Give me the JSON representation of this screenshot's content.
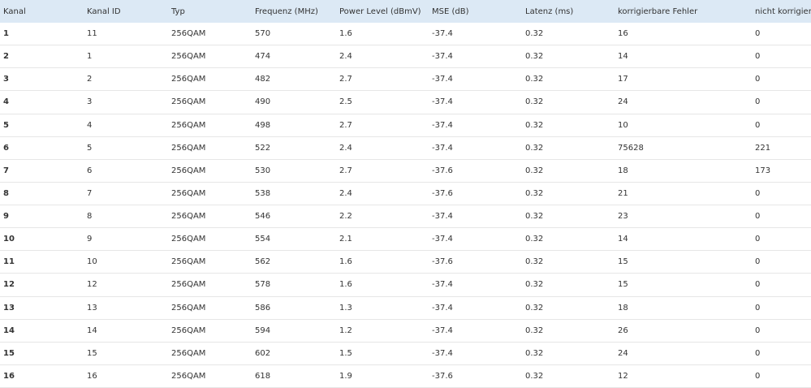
{
  "table": {
    "header": [
      "Kanal",
      "Kanal ID",
      "Typ",
      "Frequenz (MHz)",
      "Power Level (dBmV)",
      "MSE (dB)",
      "Latenz (ms)",
      "korrigierbare Fehler",
      "nicht korrigierbare Fehler"
    ],
    "rows": [
      [
        1,
        11,
        "256QAM",
        570,
        1.6,
        -37.4,
        0.32,
        16,
        0
      ],
      [
        2,
        1,
        "256QAM",
        474,
        2.4,
        -37.4,
        0.32,
        14,
        0
      ],
      [
        3,
        2,
        "256QAM",
        482,
        2.7,
        -37.4,
        0.32,
        17,
        0
      ],
      [
        4,
        3,
        "256QAM",
        490,
        2.5,
        -37.4,
        0.32,
        24,
        0
      ],
      [
        5,
        4,
        "256QAM",
        498,
        2.7,
        -37.4,
        0.32,
        10,
        0
      ],
      [
        6,
        5,
        "256QAM",
        522,
        2.4,
        -37.4,
        0.32,
        75628,
        221
      ],
      [
        7,
        6,
        "256QAM",
        530,
        2.7,
        -37.6,
        0.32,
        18,
        173
      ],
      [
        8,
        7,
        "256QAM",
        538,
        2.4,
        -37.6,
        0.32,
        21,
        0
      ],
      [
        9,
        8,
        "256QAM",
        546,
        2.2,
        -37.4,
        0.32,
        23,
        0
      ],
      [
        10,
        9,
        "256QAM",
        554,
        2.1,
        -37.4,
        0.32,
        14,
        0
      ],
      [
        11,
        10,
        "256QAM",
        562,
        1.6,
        -37.6,
        0.32,
        15,
        0
      ],
      [
        12,
        12,
        "256QAM",
        578,
        1.6,
        -37.4,
        0.32,
        15,
        0
      ],
      [
        13,
        13,
        "256QAM",
        586,
        1.3,
        -37.4,
        0.32,
        18,
        0
      ],
      [
        14,
        14,
        "256QAM",
        594,
        1.2,
        -37.4,
        0.32,
        26,
        0
      ],
      [
        15,
        15,
        "256QAM",
        602,
        1.5,
        -37.4,
        0.32,
        24,
        0
      ],
      [
        16,
        16,
        "256QAM",
        618,
        1.9,
        -37.6,
        0.32,
        12,
        0
      ]
    ]
  }
}
